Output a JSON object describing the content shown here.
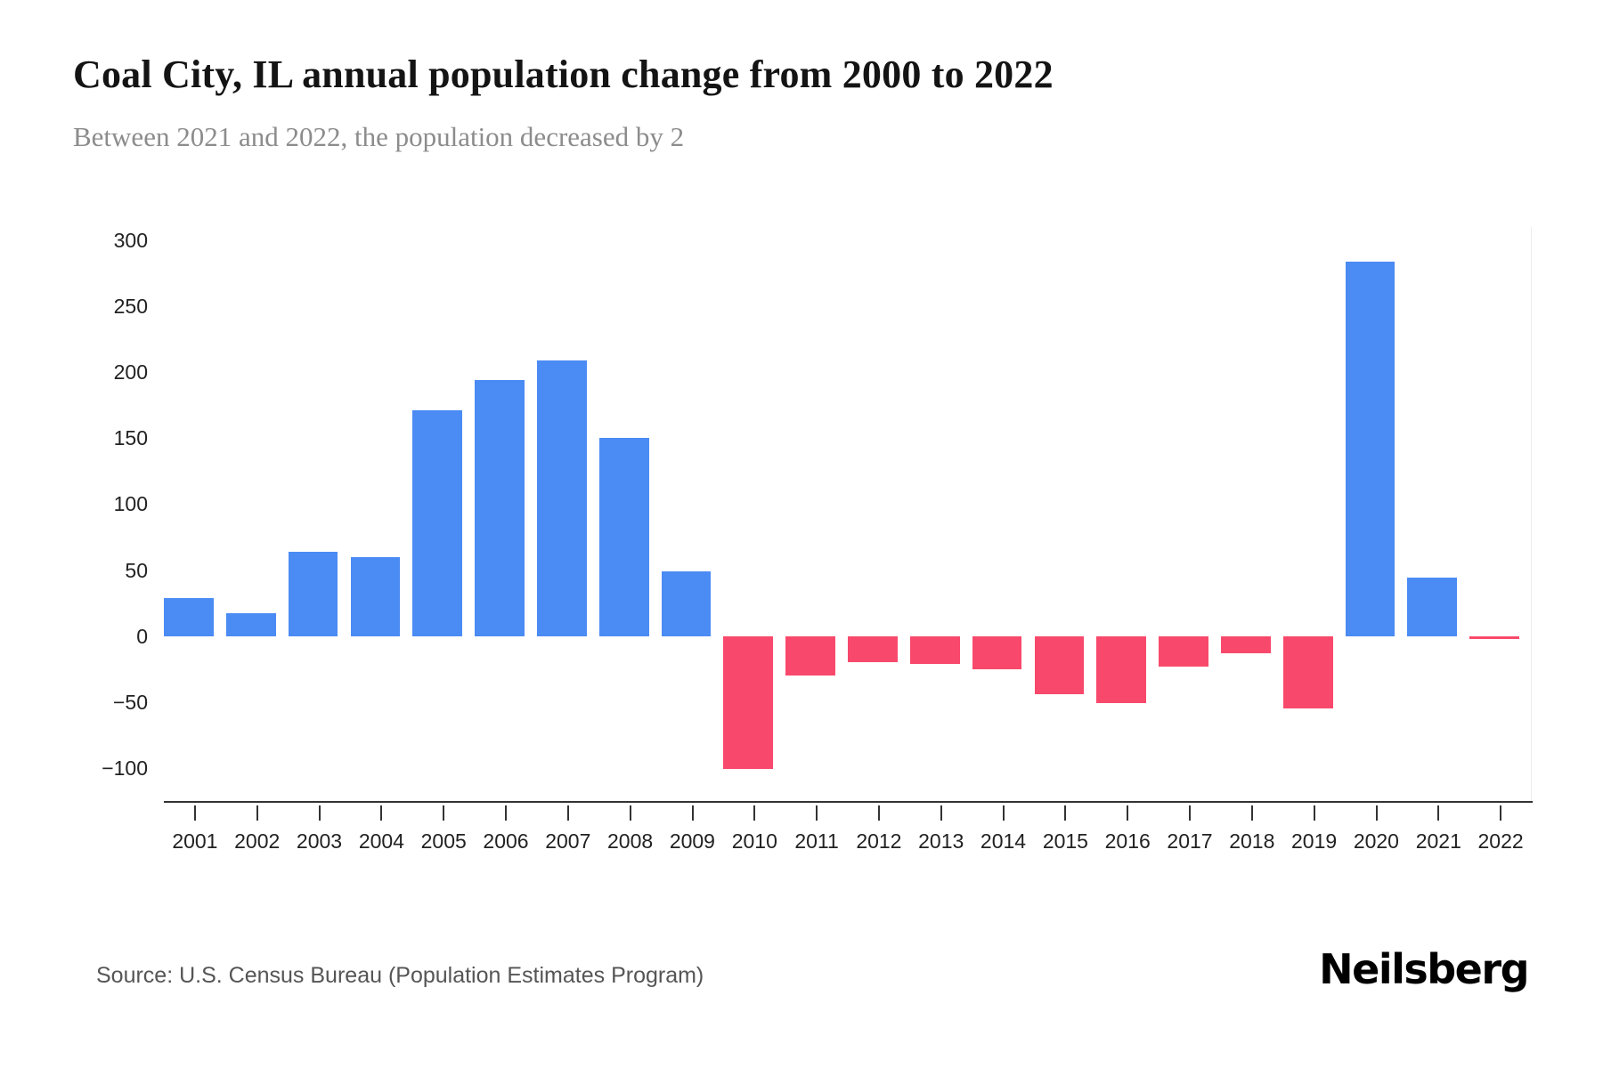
{
  "header": {
    "title": "Coal City, IL annual population change from 2000 to 2022",
    "subtitle": "Between 2021 and 2022, the population decreased by 2"
  },
  "chart_data": {
    "type": "bar",
    "title": "Coal City, IL annual population change from 2000 to 2022",
    "categories": [
      "2001",
      "2002",
      "2003",
      "2004",
      "2005",
      "2006",
      "2007",
      "2008",
      "2009",
      "2010",
      "2011",
      "2012",
      "2013",
      "2014",
      "2015",
      "2016",
      "2017",
      "2018",
      "2019",
      "2020",
      "2021",
      "2022"
    ],
    "values": [
      29,
      17,
      64,
      60,
      171,
      194,
      209,
      150,
      49,
      -101,
      -30,
      -20,
      -21,
      -25,
      -44,
      -51,
      -23,
      -13,
      -55,
      284,
      44,
      -2
    ],
    "xlabel": "",
    "ylabel": "",
    "ylim": [
      -100,
      300
    ],
    "yticks": [
      300,
      250,
      200,
      150,
      100,
      50,
      0,
      -50,
      -100
    ],
    "grid": false,
    "legend_position": "none",
    "positive_color": "#4b8bf4",
    "negative_color": "#f8496c",
    "axis_color": "#333333",
    "tick_label_color": "#222222"
  },
  "footer": {
    "source": "Source: U.S. Census Bureau (Population Estimates Program)",
    "brand": "Neilsberg"
  }
}
